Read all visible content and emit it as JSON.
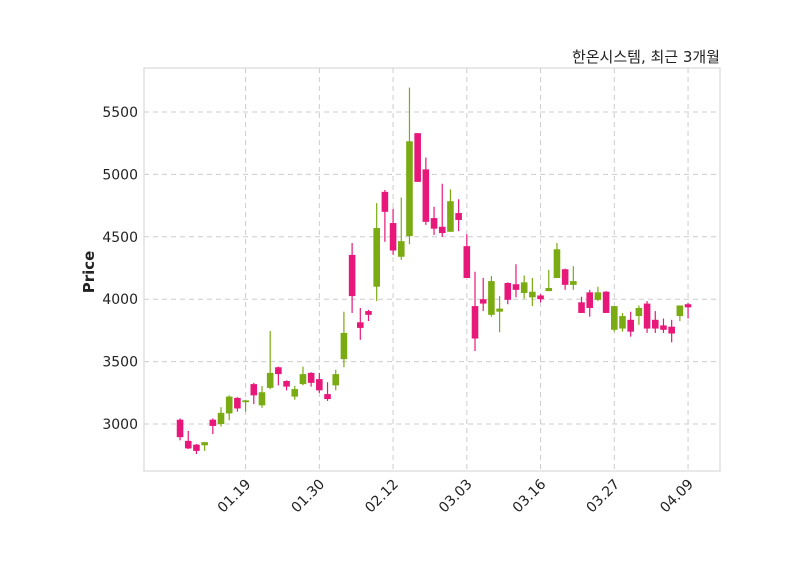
{
  "chart_data": {
    "type": "candlestick",
    "title": "한온시스템, 최근 3개월",
    "xlabel": "",
    "ylabel": "Price",
    "ylim": [
      2624,
      5852
    ],
    "xlim": [
      -4.4,
      65.9
    ],
    "grid": true,
    "colors": {
      "up": "#7aab12",
      "down": "#e8177a",
      "grid": "#cccccc",
      "frame": "#d9d9d9"
    },
    "yticks": [
      3000,
      3500,
      4000,
      4500,
      5000,
      5500
    ],
    "xticks": [
      {
        "index": 8,
        "label": "01.19"
      },
      {
        "index": 17,
        "label": "01.30"
      },
      {
        "index": 26,
        "label": "02.12"
      },
      {
        "index": 35,
        "label": "03.03"
      },
      {
        "index": 44,
        "label": "03.16"
      },
      {
        "index": 53,
        "label": "03.27"
      },
      {
        "index": 62,
        "label": "04.09"
      }
    ],
    "ohlc": [
      [
        3035,
        3045,
        2870,
        2895
      ],
      [
        2865,
        2945,
        2800,
        2805
      ],
      [
        2835,
        2840,
        2760,
        2785
      ],
      [
        2830,
        2855,
        2785,
        2855
      ],
      [
        3035,
        3045,
        2920,
        2985
      ],
      [
        3000,
        3135,
        2980,
        3090
      ],
      [
        3085,
        3230,
        3030,
        3220
      ],
      [
        3210,
        3215,
        3100,
        3125
      ],
      [
        3175,
        3195,
        3100,
        3190
      ],
      [
        3320,
        3330,
        3160,
        3230
      ],
      [
        3150,
        3305,
        3130,
        3255
      ],
      [
        3290,
        3745,
        3280,
        3410
      ],
      [
        3455,
        3460,
        3310,
        3400
      ],
      [
        3345,
        3350,
        3270,
        3300
      ],
      [
        3220,
        3305,
        3195,
        3280
      ],
      [
        3320,
        3460,
        3310,
        3400
      ],
      [
        3410,
        3415,
        3300,
        3330
      ],
      [
        3360,
        3410,
        3250,
        3270
      ],
      [
        3240,
        3335,
        3185,
        3200
      ],
      [
        3310,
        3435,
        3270,
        3400
      ],
      [
        3520,
        3900,
        3455,
        3730
      ],
      [
        4355,
        4450,
        3890,
        4025
      ],
      [
        3815,
        3930,
        3675,
        3770
      ],
      [
        3905,
        3915,
        3825,
        3875
      ],
      [
        4100,
        4770,
        3985,
        4570
      ],
      [
        4860,
        4875,
        4460,
        4700
      ],
      [
        4610,
        4725,
        4355,
        4390
      ],
      [
        4340,
        4815,
        4315,
        4465
      ],
      [
        4505,
        5695,
        4440,
        5265
      ],
      [
        5330,
        5330,
        4940,
        4940
      ],
      [
        5040,
        5135,
        4595,
        4620
      ],
      [
        4650,
        4740,
        4515,
        4565
      ],
      [
        4580,
        4925,
        4500,
        4530
      ],
      [
        4540,
        4880,
        4540,
        4785
      ],
      [
        4690,
        4800,
        4545,
        4635
      ],
      [
        4425,
        4520,
        4170,
        4170
      ],
      [
        3945,
        4220,
        3585,
        3685
      ],
      [
        4000,
        4170,
        3905,
        3965
      ],
      [
        3875,
        4185,
        3860,
        4145
      ],
      [
        3900,
        4025,
        3735,
        3925
      ],
      [
        4130,
        4135,
        3960,
        3995
      ],
      [
        4120,
        4280,
        4015,
        4075
      ],
      [
        4050,
        4190,
        4005,
        4135
      ],
      [
        4015,
        4170,
        3945,
        4060
      ],
      [
        4030,
        4040,
        3975,
        4000
      ],
      [
        4065,
        4235,
        4065,
        4090
      ],
      [
        4170,
        4450,
        4170,
        4400
      ],
      [
        4240,
        4245,
        4075,
        4115
      ],
      [
        4115,
        4265,
        4075,
        4145
      ],
      [
        3975,
        4020,
        3890,
        3890
      ],
      [
        4055,
        4075,
        3860,
        3930
      ],
      [
        3995,
        4100,
        3985,
        4055
      ],
      [
        4060,
        4065,
        3890,
        3890
      ],
      [
        3755,
        3945,
        3740,
        3945
      ],
      [
        3765,
        3890,
        3740,
        3865
      ],
      [
        3835,
        3900,
        3700,
        3740
      ],
      [
        3865,
        3950,
        3795,
        3930
      ],
      [
        3965,
        3985,
        3730,
        3765
      ],
      [
        3835,
        3905,
        3730,
        3765
      ],
      [
        3790,
        3845,
        3730,
        3755
      ],
      [
        3780,
        3835,
        3655,
        3725
      ],
      [
        3865,
        3950,
        3825,
        3950
      ],
      [
        3960,
        3970,
        3845,
        3935
      ]
    ]
  }
}
